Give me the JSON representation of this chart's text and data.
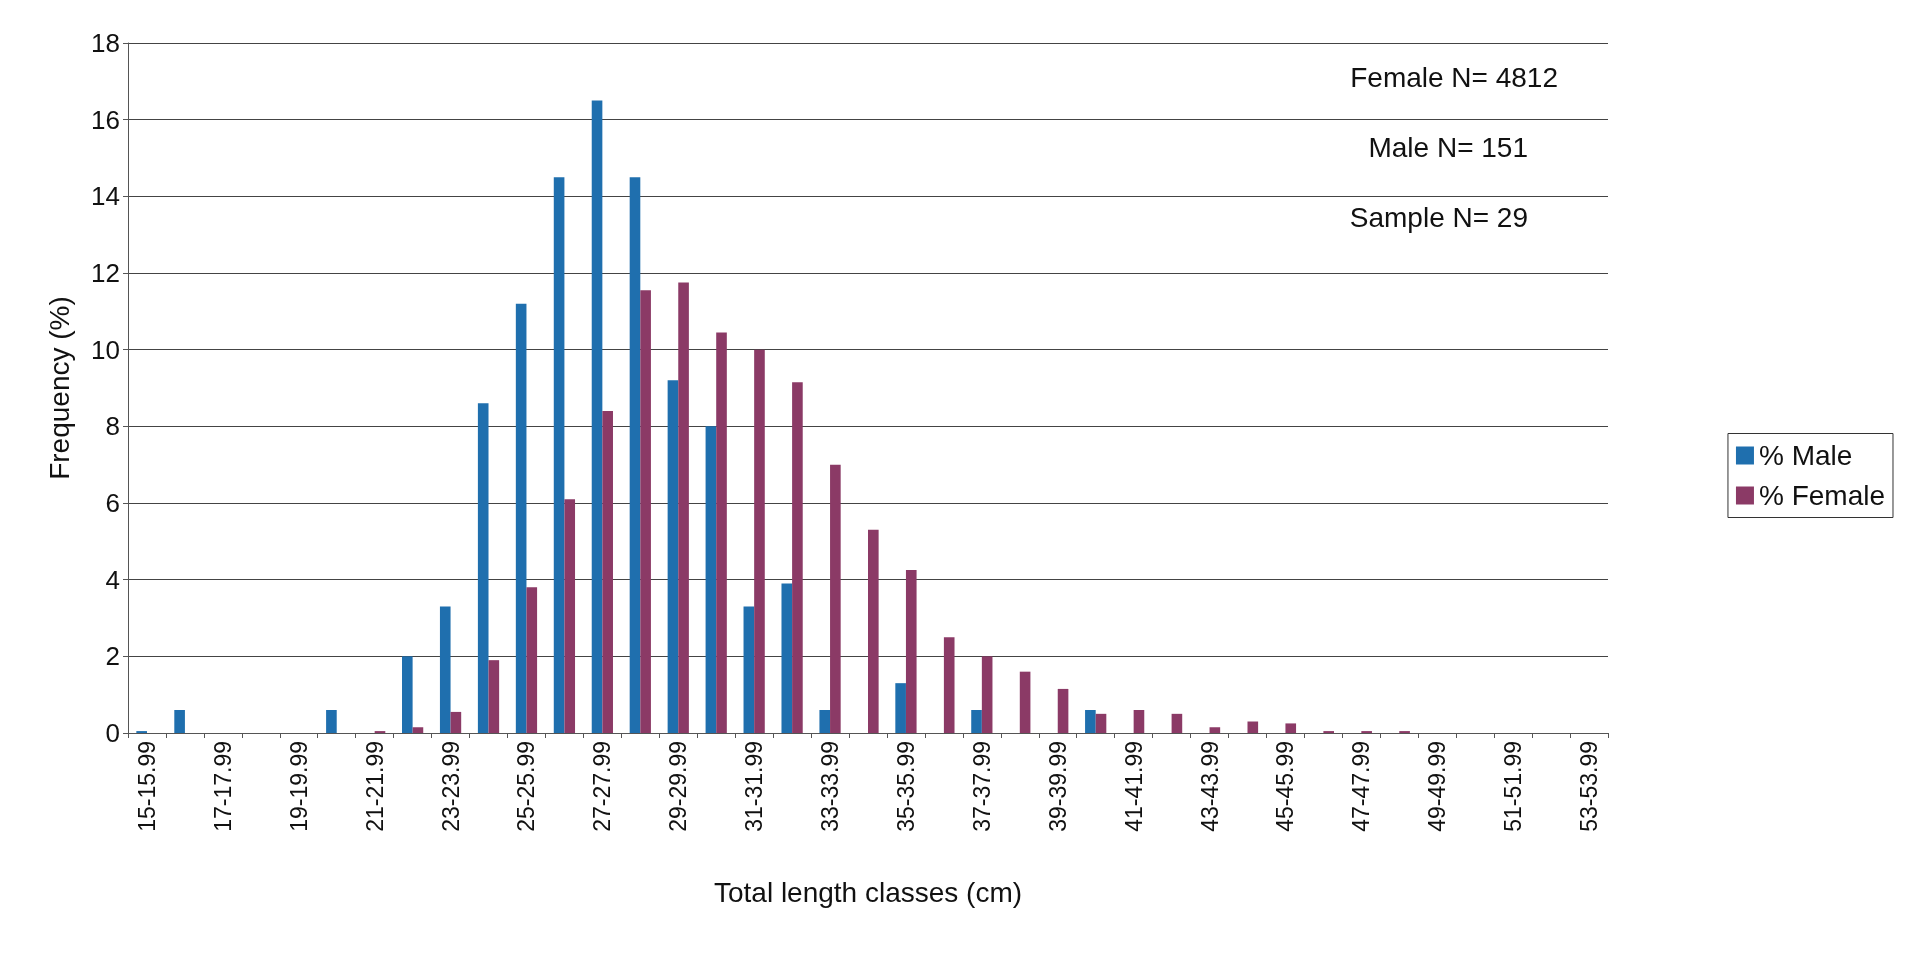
{
  "chart_data": {
    "type": "bar",
    "xlabel": "Total length classes (cm)",
    "ylabel": "Frequency (%)",
    "categories": [
      "15-15.99",
      null,
      "17-17.99",
      null,
      "19-19.99",
      null,
      "21-21.99",
      null,
      "23-23.99",
      null,
      "25-25.99",
      null,
      "27-27.99",
      null,
      "29-29.99",
      null,
      "31-31.99",
      null,
      "33-33.99",
      null,
      "35-35.99",
      null,
      "37-37.99",
      null,
      "39-39.99",
      null,
      "41-41.99",
      null,
      "43-43.99",
      null,
      "45-45.99",
      null,
      "47-47.99",
      null,
      "49-49.99",
      null,
      "51-51.99",
      null,
      "53-53.99"
    ],
    "series": [
      {
        "name": "% Male",
        "color": "#1f6fae",
        "values": [
          0.05,
          0.6,
          0,
          0,
          0,
          0.6,
          0,
          2.0,
          3.3,
          8.6,
          11.2,
          14.5,
          16.5,
          14.5,
          9.2,
          8.0,
          3.3,
          3.9,
          0.6,
          0,
          1.3,
          0,
          0.6,
          0,
          0,
          0.6,
          0,
          0,
          0,
          0,
          0,
          0,
          0,
          0,
          0,
          0,
          0,
          0,
          0
        ]
      },
      {
        "name": "% Female",
        "color": "#8b3a66",
        "values": [
          0,
          0,
          0,
          0,
          0,
          0,
          0.05,
          0.15,
          0.55,
          1.9,
          3.8,
          6.1,
          8.4,
          11.55,
          11.75,
          10.45,
          10.0,
          9.15,
          7.0,
          5.3,
          4.25,
          2.5,
          2.0,
          1.6,
          1.15,
          0.5,
          0.6,
          0.5,
          0.15,
          0.3,
          0.25,
          0.05,
          0.05,
          0.05,
          0,
          0,
          0,
          0,
          0
        ]
      }
    ],
    "ylim": [
      0,
      18
    ],
    "yticks": [
      0,
      2,
      4,
      6,
      8,
      10,
      12,
      14,
      16,
      18
    ],
    "grid": "y",
    "legend": "right",
    "annotations": [
      "Female N= 4812",
      "Male N= 151",
      "Sample N= 29"
    ]
  }
}
